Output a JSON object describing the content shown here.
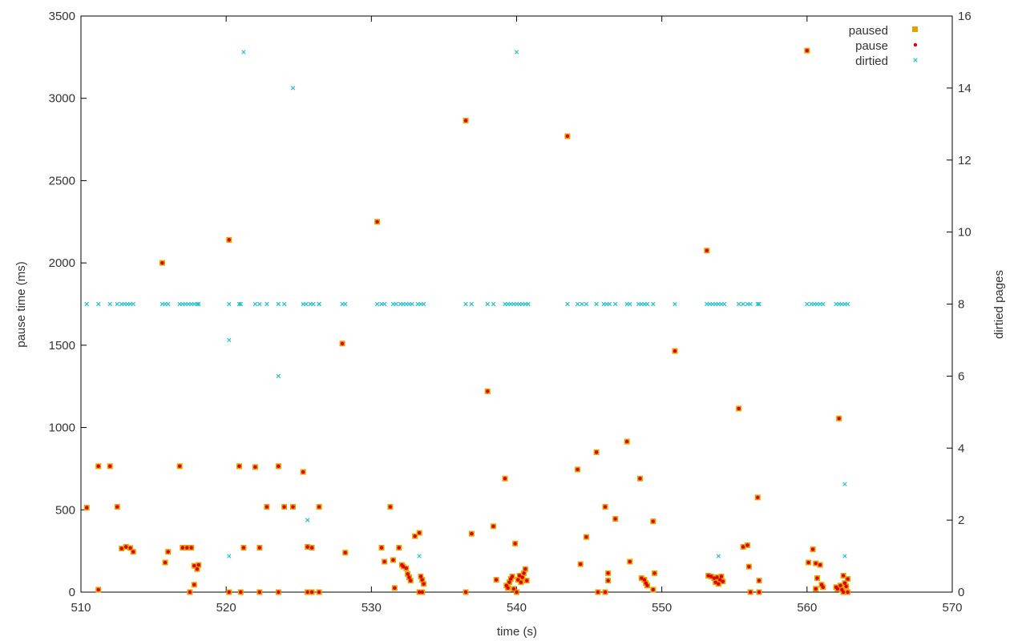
{
  "chart_data": {
    "type": "scatter",
    "title": "",
    "xlabel": "time (s)",
    "ylabel": "pause time (ms)",
    "y2label": "dirtied pages",
    "xlim": [
      510,
      570
    ],
    "ylim": [
      0,
      3500
    ],
    "y2lim": [
      0,
      16
    ],
    "x_ticks": [
      "510",
      "520",
      "530",
      "540",
      "550",
      "560",
      "570"
    ],
    "y_ticks": [
      "0",
      "500",
      "1000",
      "1500",
      "2000",
      "2500",
      "3000",
      "3500"
    ],
    "y2_ticks": [
      "0",
      "2",
      "4",
      "6",
      "8",
      "10",
      "12",
      "14",
      "16"
    ],
    "grid": false,
    "legend_position": "top-right",
    "colors": {
      "paused": "#e6a000",
      "pause": "#e00000",
      "dirtied": "#20c0d0",
      "axis": "#000000"
    },
    "series": [
      {
        "name": "paused",
        "axis": "left",
        "marker": "square",
        "points": [
          [
            510.4,
            513
          ],
          [
            511.2,
            765
          ],
          [
            511.2,
            15
          ],
          [
            512.0,
            765
          ],
          [
            512.5,
            518
          ],
          [
            512.8,
            265
          ],
          [
            513.1,
            275
          ],
          [
            513.4,
            268
          ],
          [
            513.6,
            245
          ],
          [
            515.6,
            2000
          ],
          [
            515.8,
            180
          ],
          [
            516.0,
            245
          ],
          [
            516.8,
            765
          ],
          [
            517.0,
            270
          ],
          [
            517.3,
            270
          ],
          [
            517.6,
            270
          ],
          [
            517.5,
            0
          ],
          [
            517.8,
            45
          ],
          [
            517.8,
            160
          ],
          [
            518.0,
            140
          ],
          [
            518.1,
            165
          ],
          [
            520.2,
            2140
          ],
          [
            520.2,
            0
          ],
          [
            520.9,
            765
          ],
          [
            521.0,
            0
          ],
          [
            521.2,
            270
          ],
          [
            522.0,
            760
          ],
          [
            522.3,
            270
          ],
          [
            522.3,
            0
          ],
          [
            522.8,
            518
          ],
          [
            523.6,
            765
          ],
          [
            523.6,
            0
          ],
          [
            524.0,
            518
          ],
          [
            524.6,
            518
          ],
          [
            525.3,
            730
          ],
          [
            525.6,
            275
          ],
          [
            525.6,
            0
          ],
          [
            525.9,
            270
          ],
          [
            525.9,
            0
          ],
          [
            526.4,
            518
          ],
          [
            526.4,
            0
          ],
          [
            528.0,
            1510
          ],
          [
            528.2,
            240
          ],
          [
            530.4,
            2250
          ],
          [
            530.7,
            270
          ],
          [
            530.9,
            185
          ],
          [
            531.3,
            518
          ],
          [
            531.5,
            195
          ],
          [
            531.6,
            25
          ],
          [
            531.9,
            270
          ],
          [
            532.1,
            165
          ],
          [
            532.2,
            155
          ],
          [
            532.4,
            145
          ],
          [
            532.5,
            110
          ],
          [
            532.6,
            90
          ],
          [
            532.7,
            70
          ],
          [
            533.0,
            340
          ],
          [
            533.3,
            360
          ],
          [
            533.3,
            0
          ],
          [
            533.4,
            95
          ],
          [
            533.5,
            75
          ],
          [
            533.6,
            50
          ],
          [
            533.5,
            0
          ],
          [
            536.5,
            2865
          ],
          [
            536.5,
            0
          ],
          [
            536.9,
            355
          ],
          [
            538.0,
            1220
          ],
          [
            538.4,
            400
          ],
          [
            538.6,
            75
          ],
          [
            539.2,
            690
          ],
          [
            539.3,
            40
          ],
          [
            539.4,
            25
          ],
          [
            539.5,
            60
          ],
          [
            539.6,
            80
          ],
          [
            539.7,
            95
          ],
          [
            539.8,
            20
          ],
          [
            539.9,
            295
          ],
          [
            540.0,
            0
          ],
          [
            540.1,
            75
          ],
          [
            540.2,
            100
          ],
          [
            540.3,
            60
          ],
          [
            540.4,
            90
          ],
          [
            540.5,
            115
          ],
          [
            540.6,
            140
          ],
          [
            540.7,
            70
          ],
          [
            543.5,
            2770
          ],
          [
            544.2,
            745
          ],
          [
            544.4,
            170
          ],
          [
            544.8,
            335
          ],
          [
            545.5,
            850
          ],
          [
            545.6,
            0
          ],
          [
            546.1,
            518
          ],
          [
            546.1,
            0
          ],
          [
            546.3,
            115
          ],
          [
            546.3,
            70
          ],
          [
            546.8,
            445
          ],
          [
            547.6,
            915
          ],
          [
            547.8,
            185
          ],
          [
            548.5,
            690
          ],
          [
            548.6,
            85
          ],
          [
            548.8,
            75
          ],
          [
            548.9,
            55
          ],
          [
            549.0,
            40
          ],
          [
            549.4,
            430
          ],
          [
            549.5,
            115
          ],
          [
            549.4,
            15
          ],
          [
            550.9,
            1465
          ],
          [
            553.1,
            2075
          ],
          [
            553.2,
            100
          ],
          [
            553.4,
            95
          ],
          [
            553.6,
            85
          ],
          [
            553.7,
            60
          ],
          [
            553.8,
            90
          ],
          [
            553.9,
            50
          ],
          [
            554.0,
            75
          ],
          [
            554.1,
            95
          ],
          [
            554.2,
            65
          ],
          [
            555.3,
            1115
          ],
          [
            555.6,
            275
          ],
          [
            555.9,
            285
          ],
          [
            556.0,
            155
          ],
          [
            556.1,
            0
          ],
          [
            556.6,
            575
          ],
          [
            556.7,
            70
          ],
          [
            556.7,
            0
          ],
          [
            560.0,
            3290
          ],
          [
            560.1,
            180
          ],
          [
            560.4,
            260
          ],
          [
            560.6,
            175
          ],
          [
            560.7,
            85
          ],
          [
            560.6,
            20
          ],
          [
            560.9,
            165
          ],
          [
            561.0,
            45
          ],
          [
            561.1,
            30
          ],
          [
            562.2,
            1055
          ],
          [
            562.0,
            30
          ],
          [
            562.1,
            20
          ],
          [
            562.3,
            40
          ],
          [
            562.4,
            15
          ],
          [
            562.5,
            100
          ],
          [
            562.6,
            55
          ],
          [
            562.7,
            35
          ],
          [
            562.8,
            80
          ],
          [
            562.8,
            0
          ],
          [
            562.5,
            0
          ]
        ]
      },
      {
        "name": "pause",
        "axis": "left",
        "marker": "dot",
        "points": "same as paused"
      },
      {
        "name": "dirtied",
        "axis": "right",
        "marker": "x",
        "points": [
          [
            510.4,
            8
          ],
          [
            511.2,
            8
          ],
          [
            512.0,
            8
          ],
          [
            512.5,
            8
          ],
          [
            512.8,
            8
          ],
          [
            513.0,
            8
          ],
          [
            513.2,
            8
          ],
          [
            513.4,
            8
          ],
          [
            513.6,
            8
          ],
          [
            515.6,
            8
          ],
          [
            515.8,
            8
          ],
          [
            516.0,
            8
          ],
          [
            516.8,
            8
          ],
          [
            517.0,
            8
          ],
          [
            517.2,
            8
          ],
          [
            517.4,
            8
          ],
          [
            517.6,
            8
          ],
          [
            517.8,
            8
          ],
          [
            518.0,
            8
          ],
          [
            518.1,
            8
          ],
          [
            520.2,
            8
          ],
          [
            520.2,
            7
          ],
          [
            520.2,
            1
          ],
          [
            520.9,
            8
          ],
          [
            521.0,
            8
          ],
          [
            521.2,
            15
          ],
          [
            522.0,
            8
          ],
          [
            522.3,
            8
          ],
          [
            522.8,
            8
          ],
          [
            523.6,
            8
          ],
          [
            523.6,
            6
          ],
          [
            524.0,
            8
          ],
          [
            524.6,
            14
          ],
          [
            525.3,
            8
          ],
          [
            525.5,
            8
          ],
          [
            525.6,
            2
          ],
          [
            525.8,
            8
          ],
          [
            526.0,
            8
          ],
          [
            526.4,
            8
          ],
          [
            526.4,
            8
          ],
          [
            528.0,
            8
          ],
          [
            528.2,
            8
          ],
          [
            530.4,
            8
          ],
          [
            530.7,
            8
          ],
          [
            530.9,
            8
          ],
          [
            531.5,
            8
          ],
          [
            531.7,
            8
          ],
          [
            532.0,
            8
          ],
          [
            532.2,
            8
          ],
          [
            532.4,
            8
          ],
          [
            532.6,
            8
          ],
          [
            532.8,
            8
          ],
          [
            533.2,
            8
          ],
          [
            533.3,
            1
          ],
          [
            533.4,
            8
          ],
          [
            533.6,
            8
          ],
          [
            536.5,
            8
          ],
          [
            536.9,
            8
          ],
          [
            538.0,
            8
          ],
          [
            538.4,
            8
          ],
          [
            539.2,
            8
          ],
          [
            539.4,
            8
          ],
          [
            539.6,
            8
          ],
          [
            539.8,
            8
          ],
          [
            540.0,
            8
          ],
          [
            540.0,
            15
          ],
          [
            540.2,
            8
          ],
          [
            540.4,
            8
          ],
          [
            540.6,
            8
          ],
          [
            540.8,
            8
          ],
          [
            543.5,
            8
          ],
          [
            544.2,
            8
          ],
          [
            544.5,
            8
          ],
          [
            544.8,
            8
          ],
          [
            545.5,
            8
          ],
          [
            546.0,
            8
          ],
          [
            546.2,
            8
          ],
          [
            546.4,
            8
          ],
          [
            546.8,
            8
          ],
          [
            547.6,
            8
          ],
          [
            547.8,
            8
          ],
          [
            548.4,
            8
          ],
          [
            548.6,
            8
          ],
          [
            548.8,
            8
          ],
          [
            549.0,
            8
          ],
          [
            549.4,
            8
          ],
          [
            550.9,
            8
          ],
          [
            553.1,
            8
          ],
          [
            553.3,
            8
          ],
          [
            553.5,
            8
          ],
          [
            553.7,
            8
          ],
          [
            553.9,
            8
          ],
          [
            553.9,
            1
          ],
          [
            554.1,
            8
          ],
          [
            554.3,
            8
          ],
          [
            555.3,
            8
          ],
          [
            555.6,
            8
          ],
          [
            555.9,
            8
          ],
          [
            556.1,
            8
          ],
          [
            556.6,
            8
          ],
          [
            556.7,
            8
          ],
          [
            560.0,
            8
          ],
          [
            560.3,
            8
          ],
          [
            560.5,
            8
          ],
          [
            560.7,
            8
          ],
          [
            560.9,
            8
          ],
          [
            561.1,
            8
          ],
          [
            562.0,
            8
          ],
          [
            562.2,
            8
          ],
          [
            562.4,
            8
          ],
          [
            562.6,
            8
          ],
          [
            562.6,
            3
          ],
          [
            562.6,
            1
          ],
          [
            562.8,
            8
          ]
        ]
      }
    ]
  }
}
